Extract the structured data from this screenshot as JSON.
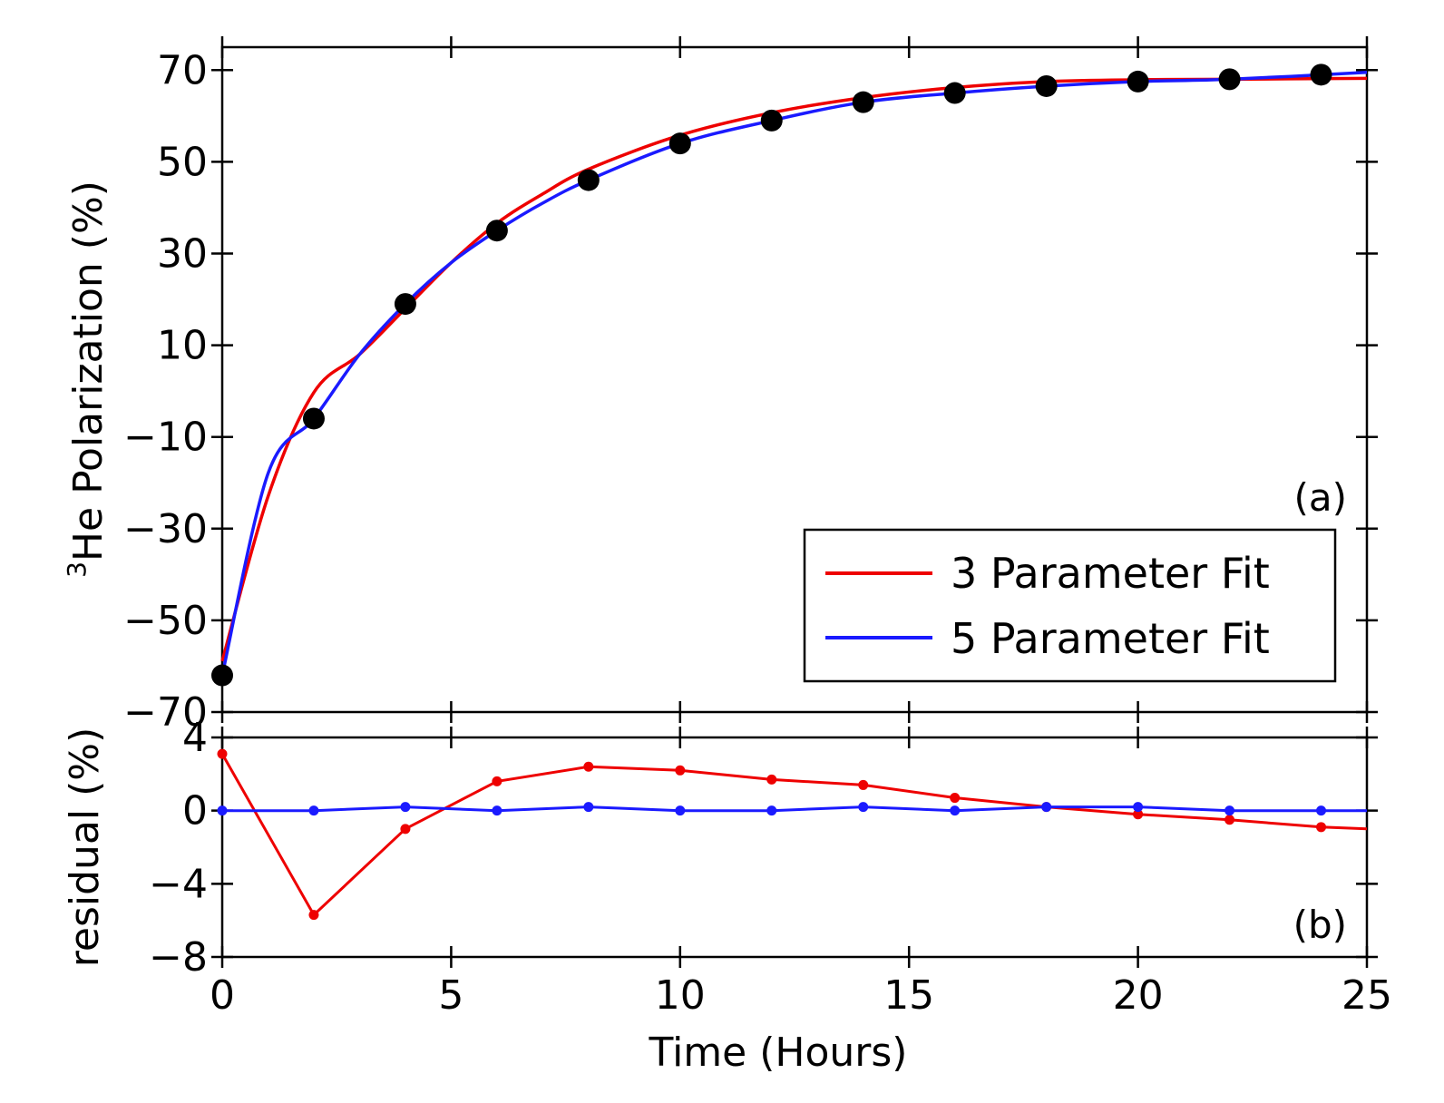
{
  "chart_data": [
    {
      "panel": "(a)",
      "type": "line",
      "ylabel_sup": "3",
      "ylabel": "He Polarization (%)",
      "ylim": [
        -70,
        75
      ],
      "yticks": [
        "70",
        "50",
        "30",
        "10",
        "−10",
        "−30",
        "−50",
        "−70"
      ],
      "ytick_values": [
        70,
        50,
        30,
        10,
        -10,
        -30,
        -50,
        -70
      ],
      "xlim": [
        0,
        25
      ],
      "grid": false,
      "legend_placement": "bottom-right",
      "data_points": {
        "x": [
          0,
          2,
          4,
          6,
          8,
          10,
          12,
          14,
          16,
          18,
          20,
          22,
          24
        ],
        "y": [
          -62,
          -6,
          19,
          35,
          46,
          54,
          59,
          63,
          65,
          66.5,
          67.5,
          68,
          69
        ],
        "color": "#000000"
      },
      "series": [
        {
          "name": "3 Parameter Fit",
          "color": "#ee0000",
          "model": "3-parameter exponential",
          "x": [
            0,
            1,
            2,
            3,
            4,
            5,
            6,
            7,
            8,
            10,
            12,
            14,
            16,
            18,
            20,
            22,
            25
          ],
          "y": [
            -58.9,
            -23,
            -0.3,
            8,
            18,
            28,
            36.6,
            43,
            48.4,
            55.8,
            60.7,
            64,
            66.2,
            67.5,
            67.9,
            68,
            68.2
          ]
        },
        {
          "name": "5 Parameter Fit",
          "color": "#1a1aff",
          "model": "5-parameter",
          "x": [
            0,
            1,
            2,
            3,
            4,
            5,
            6,
            7,
            8,
            10,
            12,
            14,
            16,
            18,
            20,
            22,
            25
          ],
          "y": [
            -62,
            -18,
            -6,
            8,
            19,
            28,
            35,
            41,
            46,
            54,
            59,
            63,
            65,
            66.5,
            67.5,
            68,
            69.5
          ]
        }
      ]
    },
    {
      "panel": "(b)",
      "type": "line",
      "ylabel": "residual (%)",
      "ylim": [
        -8,
        4
      ],
      "yticks": [
        "4",
        "0",
        "−4",
        "−8"
      ],
      "ytick_values": [
        4,
        0,
        -4,
        -8
      ],
      "xlabel": "Time (Hours)",
      "xlim": [
        0,
        25
      ],
      "xticks": [
        "0",
        "5",
        "10",
        "15",
        "20",
        "25"
      ],
      "xtick_values": [
        0,
        5,
        10,
        15,
        20,
        25
      ],
      "grid": false,
      "series": [
        {
          "color": "#ee0000",
          "x": [
            0,
            2,
            4,
            6,
            8,
            10,
            12,
            14,
            16,
            18,
            20,
            22,
            24
          ],
          "y": [
            3.1,
            -5.7,
            -1.0,
            1.6,
            2.4,
            2.2,
            1.7,
            1.4,
            0.7,
            0.2,
            -0.2,
            -0.5,
            -0.9
          ],
          "end": [
            25,
            -1.0
          ]
        },
        {
          "color": "#1a1aff",
          "x": [
            0,
            2,
            4,
            6,
            8,
            10,
            12,
            14,
            16,
            18,
            20,
            22,
            24
          ],
          "y": [
            0,
            0,
            0.2,
            0,
            0.2,
            0,
            0,
            0.2,
            0,
            0.2,
            0.2,
            0,
            0
          ],
          "end": [
            25,
            0
          ]
        }
      ]
    }
  ]
}
